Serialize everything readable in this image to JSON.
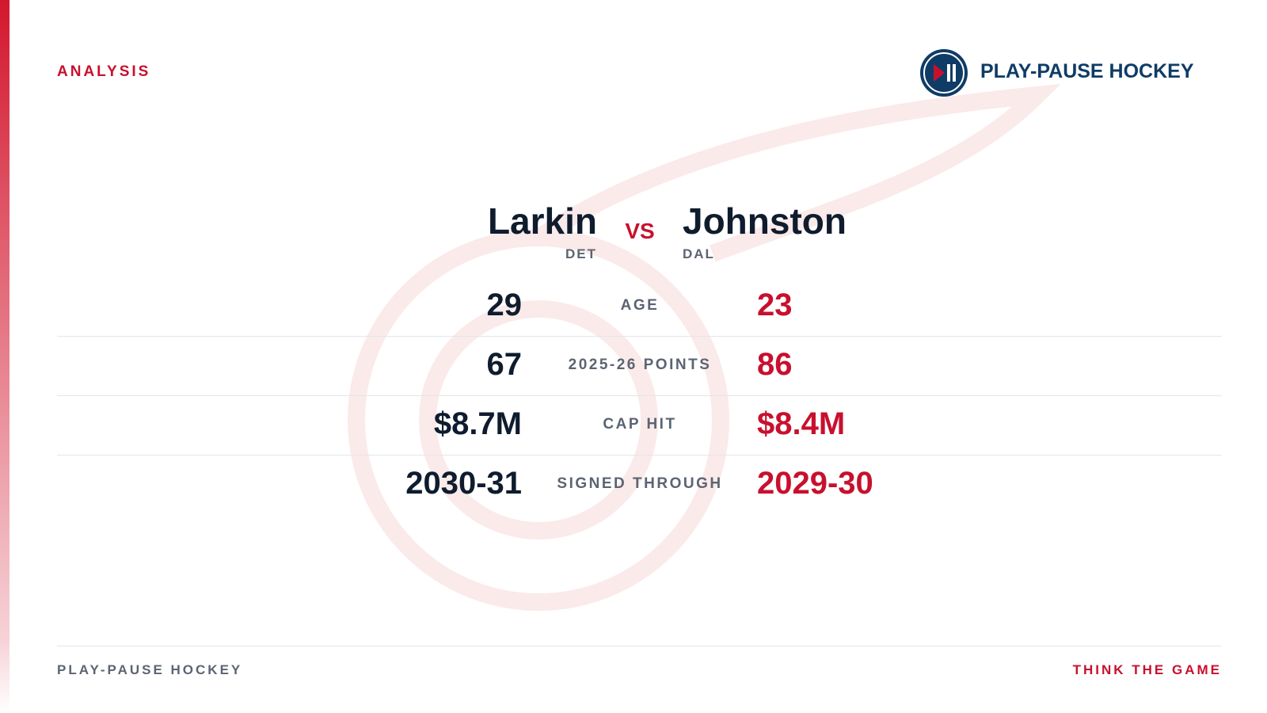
{
  "header": {
    "label": "ANALYSIS",
    "brand": "PLAY-PAUSE HOCKEY"
  },
  "matchup": {
    "left": {
      "name": "Larkin",
      "team": "DET"
    },
    "vs": "VS",
    "right": {
      "name": "Johnston",
      "team": "DAL"
    }
  },
  "table": {
    "rows": [
      [
        "29",
        "AGE",
        "23"
      ],
      [
        "67",
        "2025-26 POINTS",
        "86"
      ],
      [
        "$8.7M",
        "CAP HIT",
        "$8.4M"
      ],
      [
        "2030-31",
        "SIGNED THROUGH",
        "2029-30"
      ]
    ]
  },
  "footer": {
    "left": "PLAY-PAUSE HOCKEY",
    "right": "THINK THE GAME"
  }
}
